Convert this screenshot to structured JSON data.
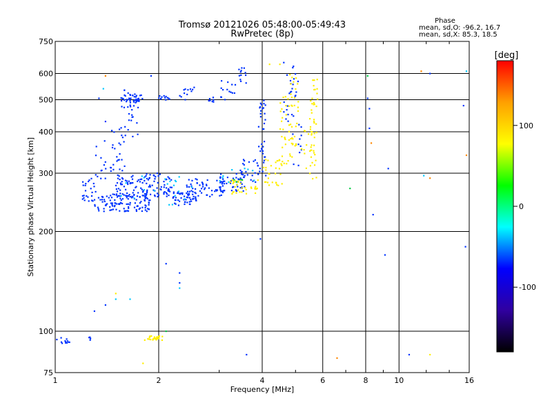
{
  "chart_data": {
    "type": "scatter",
    "title": "Tromsø 20121026 05:48:00-05:49:43",
    "subtitle": "RwPretec (8p)",
    "xlabel": "Frequency [MHz]",
    "ylabel": "Stationary phase Virtual Height [km]",
    "x_scale": "log",
    "y_scale": "log",
    "xlim": [
      1,
      16
    ],
    "ylim": [
      75,
      750
    ],
    "x_ticks": [
      1,
      2,
      4,
      6,
      8,
      10,
      16
    ],
    "x_tick_labels": [
      "1",
      "2",
      "4",
      "6",
      "8",
      "10",
      "16"
    ],
    "y_ticks": [
      75,
      100,
      200,
      300,
      400,
      500,
      600,
      750
    ],
    "y_tick_labels": [
      "75",
      "100",
      "200",
      "300",
      "400",
      "500",
      "600",
      "750"
    ],
    "grid": true,
    "phase_info": {
      "heading": "Phase",
      "line_o": "mean, sd,O: -96.2, 16.7",
      "line_x": "mean, sd,X: 85.3, 18.5"
    },
    "colorbar": {
      "label": "[deg]",
      "range": [
        -180,
        180
      ],
      "ticks": [
        100,
        0,
        -100
      ],
      "tick_labels": [
        "100",
        "0",
        "-100"
      ],
      "colors": [
        "#ff0000",
        "#ffa000",
        "#ffff00",
        "#00ff00",
        "#00ffff",
        "#0000ff",
        "#3000a0",
        "#000000"
      ]
    },
    "series": [
      {
        "color": "#0033ff",
        "phase": -100,
        "segments": [
          {
            "x": [
              1.55,
              1.8
            ],
            "y": [
              490,
              520
            ],
            "n": 40
          },
          {
            "x": [
              2.0,
              2.15
            ],
            "y": [
              490,
              515
            ],
            "n": 12
          },
          {
            "x": [
              2.3,
              2.6
            ],
            "y": [
              500,
              545
            ],
            "n": 12
          },
          {
            "x": [
              2.75,
              2.95
            ],
            "y": [
              490,
              510
            ],
            "n": 8
          },
          {
            "x": [
              3.0,
              3.35
            ],
            "y": [
              500,
              580
            ],
            "n": 14
          },
          {
            "x": [
              3.4,
              3.65
            ],
            "y": [
              560,
              625
            ],
            "n": 12
          },
          {
            "x": [
              3.9,
              4.1
            ],
            "y": [
              290,
              500
            ],
            "n": 35
          },
          {
            "x": [
              4.6,
              5.1
            ],
            "y": [
              430,
              650
            ],
            "n": 25
          },
          {
            "x": [
              4.9,
              5.2
            ],
            "y": [
              300,
              450
            ],
            "n": 12
          },
          {
            "x": [
              1.2,
              1.32
            ],
            "y": [
              245,
              290
            ],
            "n": 25
          },
          {
            "x": [
              1.3,
              1.9
            ],
            "y": [
              230,
              260
            ],
            "n": 120
          },
          {
            "x": [
              1.5,
              2.2
            ],
            "y": [
              255,
              300
            ],
            "n": 120
          },
          {
            "x": [
              1.45,
              1.6
            ],
            "y": [
              300,
              420
            ],
            "n": 25
          },
          {
            "x": [
              1.55,
              1.75
            ],
            "y": [
              380,
              540
            ],
            "n": 25
          },
          {
            "x": [
              2.2,
              2.6
            ],
            "y": [
              240,
              265
            ],
            "n": 50
          },
          {
            "x": [
              2.4,
              3.1
            ],
            "y": [
              255,
              290
            ],
            "n": 60
          },
          {
            "x": [
              3.0,
              3.6
            ],
            "y": [
              265,
              300
            ],
            "n": 40
          },
          {
            "x": [
              3.4,
              3.9
            ],
            "y": [
              280,
              330
            ],
            "n": 25
          },
          {
            "x": [
              1.3,
              1.45
            ],
            "y": [
              280,
              380
            ],
            "n": 14
          },
          {
            "x": [
              1.0,
              1.1
            ],
            "y": [
              92,
              96
            ],
            "n": 12
          },
          {
            "x": [
              1.24,
              1.27
            ],
            "y": [
              94,
              97
            ],
            "n": 4
          }
        ],
        "points": [
          [
            1.34,
            505
          ],
          [
            1.4,
            430
          ],
          [
            1.47,
            365
          ],
          [
            1.98,
            300
          ],
          [
            2.3,
            150
          ],
          [
            2.3,
            140
          ],
          [
            1.3,
            115
          ],
          [
            1.4,
            120
          ],
          [
            2.1,
            160
          ],
          [
            8.1,
            505
          ],
          [
            8.2,
            470
          ],
          [
            8.2,
            410
          ],
          [
            8.4,
            225
          ],
          [
            9.1,
            170
          ],
          [
            9.3,
            310
          ],
          [
            10.7,
            85
          ],
          [
            12.3,
            600
          ],
          [
            15.4,
            480
          ],
          [
            15.6,
            180
          ],
          [
            3.95,
            190
          ],
          [
            3.6,
            85
          ],
          [
            1.9,
            590
          ]
        ]
      },
      {
        "color": "#00c8ff",
        "phase": -50,
        "segments": [
          {
            "x": [
              1.5,
              2.5
            ],
            "y": [
              240,
              300
            ],
            "n": 20
          },
          {
            "x": [
              3.0,
              3.8
            ],
            "y": [
              270,
              320
            ],
            "n": 10
          }
        ],
        "points": [
          [
            1.38,
            540
          ],
          [
            1.5,
            125
          ],
          [
            1.65,
            125
          ],
          [
            2.3,
            135
          ],
          [
            15.7,
            610
          ],
          [
            11.8,
            295
          ]
        ]
      },
      {
        "color": "#ffee00",
        "phase": 90,
        "segments": [
          {
            "x": [
              1.82,
              2.05
            ],
            "y": [
              94,
              97
            ],
            "n": 30
          },
          {
            "x": [
              3.2,
              3.9
            ],
            "y": [
              260,
              290
            ],
            "n": 35
          },
          {
            "x": [
              4.0,
              4.6
            ],
            "y": [
              275,
              330
            ],
            "n": 30
          },
          {
            "x": [
              4.5,
              4.9
            ],
            "y": [
              320,
              520
            ],
            "n": 35
          },
          {
            "x": [
              4.8,
              5.1
            ],
            "y": [
              360,
              600
            ],
            "n": 25
          },
          {
            "x": [
              5.5,
              5.8
            ],
            "y": [
              280,
              600
            ],
            "n": 45
          },
          {
            "x": [
              5.2,
              5.6
            ],
            "y": [
              300,
              420
            ],
            "n": 12
          }
        ],
        "points": [
          [
            4.2,
            640
          ],
          [
            4.5,
            640
          ],
          [
            1.5,
            130
          ],
          [
            1.8,
            80
          ],
          [
            12.3,
            85
          ]
        ]
      },
      {
        "color": "#ff8800",
        "phase": 160,
        "segments": [],
        "points": [
          [
            1.4,
            590
          ],
          [
            6.6,
            83
          ],
          [
            8.3,
            370
          ],
          [
            11.6,
            610
          ],
          [
            12.3,
            290
          ],
          [
            15.7,
            340
          ]
        ]
      },
      {
        "color": "#00cc44",
        "phase": 20,
        "segments": [
          {
            "x": [
              3.3,
              3.5
            ],
            "y": [
              275,
              290
            ],
            "n": 4
          }
        ],
        "points": [
          [
            7.2,
            270
          ],
          [
            8.1,
            590
          ],
          [
            2.1,
            100
          ]
        ]
      }
    ]
  }
}
